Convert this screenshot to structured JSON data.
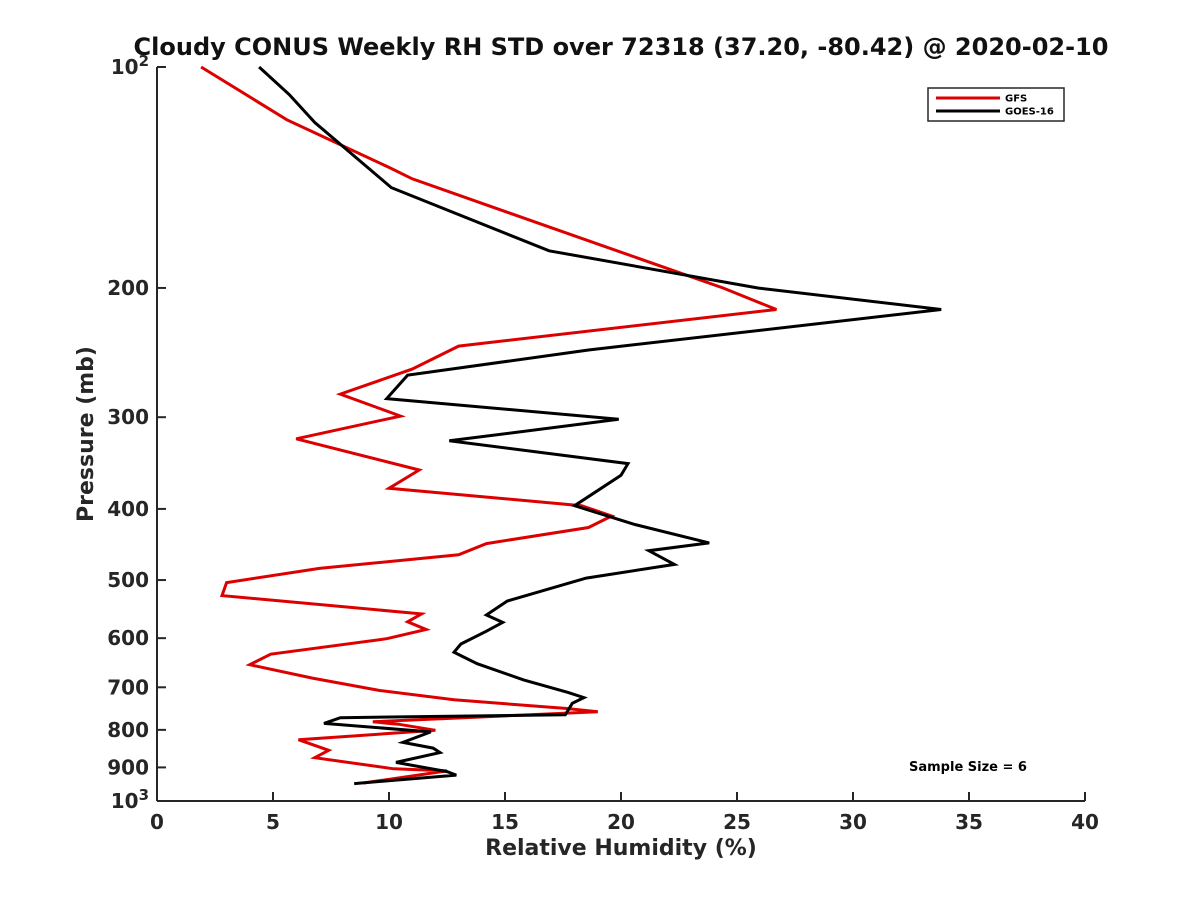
{
  "chart_data": {
    "type": "line",
    "title": "Cloudy CONUS Weekly RH STD over 72318 (37.20, -80.42) @ 2020-02-10",
    "xlabel": "Relative Humidity (%)",
    "ylabel": "Pressure (mb)",
    "xlim": [
      0,
      40
    ],
    "ylim": [
      100,
      1000
    ],
    "yscale": "log",
    "yreversed": true,
    "xticks": [
      0,
      5,
      10,
      15,
      20,
      25,
      30,
      35,
      40
    ],
    "xtick_labels": [
      "0",
      "5",
      "10",
      "15",
      "20",
      "25",
      "30",
      "35",
      "40"
    ],
    "yticks": [
      {
        "value": 100,
        "label": "10",
        "exp": "2"
      },
      {
        "value": 200,
        "label": "200",
        "exp": ""
      },
      {
        "value": 300,
        "label": "300",
        "exp": ""
      },
      {
        "value": 400,
        "label": "400",
        "exp": ""
      },
      {
        "value": 500,
        "label": "500",
        "exp": ""
      },
      {
        "value": 600,
        "label": "600",
        "exp": ""
      },
      {
        "value": 700,
        "label": "700",
        "exp": ""
      },
      {
        "value": 800,
        "label": "800",
        "exp": ""
      },
      {
        "value": 900,
        "label": "900",
        "exp": ""
      },
      {
        "value": 1000,
        "label": "10",
        "exp": "3"
      }
    ],
    "legend_position": "top-right",
    "annotation": "Sample Size = 6",
    "series": [
      {
        "name": "GFS",
        "color": "#dd0000",
        "points": [
          [
            1.9,
            100
          ],
          [
            5.6,
            118
          ],
          [
            10.0,
            137
          ],
          [
            11.0,
            142
          ],
          [
            17.1,
            166
          ],
          [
            24.4,
            200
          ],
          [
            26.7,
            214
          ],
          [
            13.0,
            240
          ],
          [
            11.0,
            258
          ],
          [
            7.9,
            279
          ],
          [
            10.5,
            299
          ],
          [
            6.0,
            321
          ],
          [
            11.3,
            354
          ],
          [
            10.0,
            375
          ],
          [
            18.3,
            396
          ],
          [
            19.6,
            409
          ],
          [
            18.6,
            424
          ],
          [
            14.2,
            446
          ],
          [
            13.0,
            462
          ],
          [
            7.0,
            482
          ],
          [
            3.0,
            504
          ],
          [
            2.8,
            525
          ],
          [
            11.4,
            556
          ],
          [
            10.8,
            570
          ],
          [
            11.6,
            584
          ],
          [
            9.9,
            601
          ],
          [
            4.9,
            631
          ],
          [
            4.0,
            652
          ],
          [
            6.7,
            680
          ],
          [
            9.6,
            707
          ],
          [
            12.8,
            728
          ],
          [
            17.6,
            748
          ],
          [
            19.0,
            756
          ],
          [
            9.3,
            780
          ],
          [
            10.4,
            786
          ],
          [
            12.0,
            801
          ],
          [
            6.1,
            825
          ],
          [
            7.4,
            853
          ],
          [
            6.8,
            873
          ],
          [
            10.2,
            904
          ],
          [
            12.5,
            910
          ],
          [
            8.9,
            945
          ]
        ]
      },
      {
        "name": "GOES-16",
        "color": "#000000",
        "points": [
          [
            4.4,
            100
          ],
          [
            5.7,
            109
          ],
          [
            6.8,
            119
          ],
          [
            10.1,
            146
          ],
          [
            16.9,
            178
          ],
          [
            25.9,
            200
          ],
          [
            33.8,
            214
          ],
          [
            18.6,
            243
          ],
          [
            10.8,
            263
          ],
          [
            9.9,
            283
          ],
          [
            19.9,
            302
          ],
          [
            12.6,
            323
          ],
          [
            20.3,
            347
          ],
          [
            20.0,
            360
          ],
          [
            18.0,
            396
          ],
          [
            20.6,
            420
          ],
          [
            23.8,
            445
          ],
          [
            21.2,
            456
          ],
          [
            22.3,
            476
          ],
          [
            18.5,
            497
          ],
          [
            15.1,
            534
          ],
          [
            14.2,
            558
          ],
          [
            14.9,
            571
          ],
          [
            14.2,
            587
          ],
          [
            13.1,
            611
          ],
          [
            12.8,
            627
          ],
          [
            13.8,
            650
          ],
          [
            15.8,
            684
          ],
          [
            17.7,
            711
          ],
          [
            18.4,
            723
          ],
          [
            17.9,
            736
          ],
          [
            17.6,
            763
          ],
          [
            7.9,
            770
          ],
          [
            7.2,
            784
          ],
          [
            11.8,
            805
          ],
          [
            10.6,
            832
          ],
          [
            11.9,
            847
          ],
          [
            12.2,
            859
          ],
          [
            10.3,
            886
          ],
          [
            12.5,
            912
          ],
          [
            12.9,
            922
          ],
          [
            8.5,
            947
          ]
        ]
      }
    ]
  }
}
